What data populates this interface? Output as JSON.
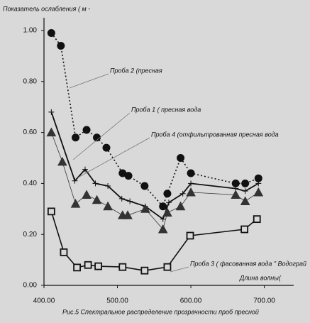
{
  "chart_data": {
    "type": "line",
    "ylabel": "Показатель ослабления ( м -",
    "xlabel": "Длина волны(",
    "caption": "Рис.5  Спектральное распределение прозрачности проб пресной",
    "xlim": [
      400,
      740
    ],
    "ylim": [
      0,
      1.05
    ],
    "xticks": [
      {
        "value": 400,
        "label": "400.00"
      },
      {
        "value": 500,
        "label": "500.00"
      },
      {
        "value": 600,
        "label": "600.00"
      },
      {
        "value": 700,
        "label": "700.00"
      }
    ],
    "yticks": [
      {
        "value": 0,
        "label": "0.00"
      },
      {
        "value": 0.2,
        "label": "0.20"
      },
      {
        "value": 0.4,
        "label": "0.40"
      },
      {
        "value": 0.6,
        "label": "0.60"
      },
      {
        "value": 0.8,
        "label": "0.80"
      },
      {
        "value": 1,
        "label": "1.00"
      }
    ],
    "series": [
      {
        "name": "Проба 2 (пресная",
        "color": "#111111",
        "marker": "circle",
        "dashed": true,
        "x": [
          410,
          423,
          443,
          458,
          472,
          485,
          507,
          515,
          537,
          562,
          568,
          586,
          600,
          661,
          674,
          692
        ],
        "values": [
          0.99,
          0.94,
          0.58,
          0.61,
          0.58,
          0.54,
          0.44,
          0.43,
          0.39,
          0.31,
          0.36,
          0.5,
          0.44,
          0.4,
          0.4,
          0.42
        ]
      },
      {
        "name": "Проба 1 ( пресная вода",
        "color": "#111111",
        "marker": "plus",
        "dashed": false,
        "x": [
          410,
          442,
          456,
          470,
          487,
          506,
          517,
          538,
          562,
          570,
          589,
          600,
          661,
          674,
          692
        ],
        "values": [
          0.68,
          0.41,
          0.455,
          0.4,
          0.39,
          0.34,
          0.33,
          0.31,
          0.26,
          0.325,
          0.36,
          0.4,
          0.38,
          0.37,
          0.4
        ]
      },
      {
        "name": "Проба 4 (отфильтрованная пресная вода",
        "color": "#333333",
        "marker": "triangle",
        "dashed": false,
        "x": [
          410,
          425,
          443,
          458,
          472,
          487,
          507,
          514,
          538,
          562,
          568,
          586,
          600,
          661,
          674,
          692
        ],
        "values": [
          0.6,
          0.485,
          0.32,
          0.355,
          0.335,
          0.31,
          0.275,
          0.275,
          0.3,
          0.22,
          0.285,
          0.31,
          0.365,
          0.355,
          0.33,
          0.365
        ]
      },
      {
        "name": "Проба 3 ( фасованная вода \" Водограй",
        "color": "#111111",
        "marker": "square",
        "dashed": false,
        "x": [
          410,
          427,
          445,
          460,
          474,
          507,
          537,
          568,
          599,
          673,
          690
        ],
        "values": [
          0.29,
          0.13,
          0.07,
          0.08,
          0.075,
          0.072,
          0.058,
          0.072,
          0.195,
          0.22,
          0.26
        ]
      }
    ]
  }
}
